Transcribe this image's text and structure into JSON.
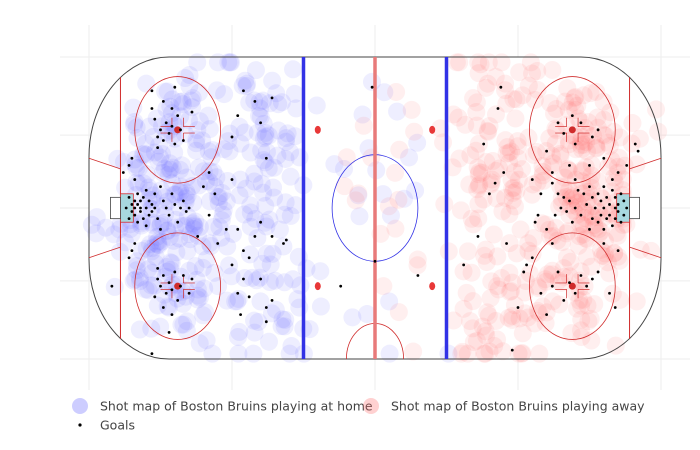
{
  "chart_data": {
    "type": "scatter",
    "title": "",
    "xlabel": "",
    "ylabel": "",
    "xlim": [
      -100,
      100
    ],
    "ylim": [
      -42.5,
      42.5
    ],
    "grid": true,
    "legend_position": "bottom",
    "background": "ice hockey rink",
    "series": [
      {
        "name": "Shot map of Boston Bruins playing  at home",
        "color": "#5b5bff",
        "opacity": 0.1,
        "marker": "large circle",
        "density_clusters": [
          {
            "x": -75,
            "y": 0,
            "count": 110,
            "spread_x": 10,
            "spread_y": 12
          },
          {
            "x": -69,
            "y": 22,
            "count": 45,
            "spread_x": 9,
            "spread_y": 8
          },
          {
            "x": -69,
            "y": -22,
            "count": 45,
            "spread_x": 9,
            "spread_y": 8
          },
          {
            "x": -55,
            "y": 0,
            "count": 70,
            "spread_x": 12,
            "spread_y": 20
          },
          {
            "x": -38,
            "y": 27,
            "count": 40,
            "spread_x": 8,
            "spread_y": 10
          },
          {
            "x": -38,
            "y": -27,
            "count": 40,
            "spread_x": 8,
            "spread_y": 10
          },
          {
            "x": -40,
            "y": 0,
            "count": 25,
            "spread_x": 8,
            "spread_y": 12
          },
          {
            "x": -5,
            "y": 0,
            "count": 22,
            "spread_x": 18,
            "spread_y": 22
          }
        ]
      },
      {
        "name": "Shot map of Boston Bruins playing  away",
        "color": "#ff6666",
        "opacity": 0.1,
        "marker": "large circle",
        "density_clusters": [
          {
            "x": 78,
            "y": 0,
            "count": 110,
            "spread_x": 8,
            "spread_y": 12
          },
          {
            "x": 69,
            "y": 22,
            "count": 45,
            "spread_x": 9,
            "spread_y": 8
          },
          {
            "x": 69,
            "y": -22,
            "count": 45,
            "spread_x": 9,
            "spread_y": 8
          },
          {
            "x": 55,
            "y": 0,
            "count": 70,
            "spread_x": 12,
            "spread_y": 20
          },
          {
            "x": 40,
            "y": 28,
            "count": 40,
            "spread_x": 8,
            "spread_y": 10
          },
          {
            "x": 40,
            "y": -28,
            "count": 40,
            "spread_x": 8,
            "spread_y": 10
          },
          {
            "x": 42,
            "y": 0,
            "count": 25,
            "spread_x": 8,
            "spread_y": 12
          },
          {
            "x": 10,
            "y": 0,
            "count": 22,
            "spread_x": 18,
            "spread_y": 22
          }
        ]
      },
      {
        "name": "Goals",
        "color": "#000000",
        "marker": "small dot",
        "points": [
          [
            -87,
            0
          ],
          [
            -86,
            3
          ],
          [
            -86,
            -3
          ],
          [
            -85,
            1
          ],
          [
            -85,
            -1
          ],
          [
            -84,
            0
          ],
          [
            -84,
            2
          ],
          [
            -84,
            -2
          ],
          [
            -83,
            4
          ],
          [
            -83,
            -4
          ],
          [
            -83,
            1
          ],
          [
            -82,
            0
          ],
          [
            -82,
            -1
          ],
          [
            -82,
            2
          ],
          [
            -81,
            3
          ],
          [
            -81,
            -3
          ],
          [
            -80,
            0
          ],
          [
            -80,
            5
          ],
          [
            -80,
            -5
          ],
          [
            -79,
            2
          ],
          [
            -79,
            -2
          ],
          [
            -78,
            1
          ],
          [
            -78,
            -1
          ],
          [
            -77,
            4
          ],
          [
            -77,
            0
          ],
          [
            -76,
            -3
          ],
          [
            -75,
            6
          ],
          [
            -75,
            -6
          ],
          [
            -74,
            2
          ],
          [
            -73,
            0
          ],
          [
            -72,
            -2
          ],
          [
            -71,
            4
          ],
          [
            -70,
            1
          ],
          [
            -69,
            -4
          ],
          [
            -68,
            0
          ],
          [
            -67,
            2
          ],
          [
            -66,
            -1
          ],
          [
            -65,
            0
          ],
          [
            -88,
            10
          ],
          [
            -86,
            12
          ],
          [
            -85,
            14
          ],
          [
            -84,
            8
          ],
          [
            -84,
            -10
          ],
          [
            -85,
            -12
          ],
          [
            -86,
            -14
          ],
          [
            -76,
            20
          ],
          [
            -75,
            22
          ],
          [
            -74,
            19
          ],
          [
            -73,
            24
          ],
          [
            -72,
            21
          ],
          [
            -71,
            23
          ],
          [
            -70,
            18
          ],
          [
            -77,
            25
          ],
          [
            -69,
            26
          ],
          [
            -68,
            22
          ],
          [
            -74,
            30
          ],
          [
            -71,
            28
          ],
          [
            -67,
            19
          ],
          [
            -76,
            17
          ],
          [
            -76,
            -20
          ],
          [
            -75,
            -22
          ],
          [
            -74,
            -19
          ],
          [
            -73,
            -24
          ],
          [
            -72,
            -21
          ],
          [
            -71,
            -23
          ],
          [
            -70,
            -18
          ],
          [
            -77,
            -25
          ],
          [
            -69,
            -26
          ],
          [
            -68,
            -22
          ],
          [
            -74,
            -28
          ],
          [
            -71,
            -30
          ],
          [
            -67,
            -19
          ],
          [
            -76,
            -17
          ],
          [
            -78,
            33
          ],
          [
            -78,
            28
          ],
          [
            -70,
            34
          ],
          [
            -64,
            27
          ],
          [
            -65,
            -24
          ],
          [
            -64,
            -20
          ],
          [
            -72,
            -35
          ],
          [
            -60,
            6
          ],
          [
            -58,
            -2
          ],
          [
            -56,
            4
          ],
          [
            -62,
            -8
          ],
          [
            -58,
            10
          ],
          [
            -55,
            -10
          ],
          [
            -50,
            8
          ],
          [
            -52,
            -6
          ],
          [
            -48,
            26
          ],
          [
            -46,
            33
          ],
          [
            -42,
            30
          ],
          [
            -40,
            24
          ],
          [
            -38,
            14
          ],
          [
            -36,
            31
          ],
          [
            -50,
            20
          ],
          [
            -48,
            -6
          ],
          [
            -46,
            -12
          ],
          [
            -44,
            -14
          ],
          [
            -42,
            -8
          ],
          [
            -40,
            -4
          ],
          [
            -40,
            -20
          ],
          [
            -36,
            -8
          ],
          [
            -38,
            -28
          ],
          [
            -38,
            -32
          ],
          [
            -32,
            -10
          ],
          [
            -31,
            -9
          ],
          [
            -36,
            -26
          ],
          [
            -50,
            -16
          ],
          [
            -48,
            -24
          ],
          [
            -92,
            -22
          ],
          [
            -46,
            -20
          ],
          [
            -47,
            -30
          ],
          [
            -44,
            -25
          ],
          [
            -1,
            34
          ],
          [
            0,
            -15
          ],
          [
            -12,
            -22
          ],
          [
            -78,
            -41
          ],
          [
            88,
            0
          ],
          [
            87,
            2
          ],
          [
            87,
            -2
          ],
          [
            86,
            4
          ],
          [
            86,
            -4
          ],
          [
            85,
            1
          ],
          [
            85,
            -1
          ],
          [
            84,
            0
          ],
          [
            84,
            3
          ],
          [
            84,
            -3
          ],
          [
            83,
            5
          ],
          [
            83,
            -5
          ],
          [
            82,
            1
          ],
          [
            82,
            -2
          ],
          [
            81,
            3
          ],
          [
            81,
            -3
          ],
          [
            80,
            0
          ],
          [
            80,
            6
          ],
          [
            80,
            -6
          ],
          [
            79,
            2
          ],
          [
            79,
            -2
          ],
          [
            78,
            4
          ],
          [
            78,
            -4
          ],
          [
            77,
            0
          ],
          [
            76,
            3
          ],
          [
            76,
            -3
          ],
          [
            75,
            6
          ],
          [
            75,
            -6
          ],
          [
            74,
            1
          ],
          [
            73,
            4
          ],
          [
            72,
            -2
          ],
          [
            71,
            5
          ],
          [
            70,
            0
          ],
          [
            69,
            -4
          ],
          [
            68,
            2
          ],
          [
            67,
            -1
          ],
          [
            66,
            3
          ],
          [
            65,
            0
          ],
          [
            64,
            4
          ],
          [
            63,
            -2
          ],
          [
            62,
            7
          ],
          [
            92,
            16
          ],
          [
            91,
            18
          ],
          [
            88,
            12
          ],
          [
            85,
            10
          ],
          [
            80,
            14
          ],
          [
            75,
            12
          ],
          [
            70,
            8
          ],
          [
            68,
            12
          ],
          [
            78,
            22
          ],
          [
            76,
            20
          ],
          [
            72,
            24
          ],
          [
            69,
            26
          ],
          [
            70,
            18
          ],
          [
            66,
            21
          ],
          [
            64,
            24
          ],
          [
            60,
            16
          ],
          [
            62,
            10
          ],
          [
            58,
            4
          ],
          [
            57,
            -2
          ],
          [
            56,
            -4
          ],
          [
            55,
            8
          ],
          [
            60,
            -6
          ],
          [
            62,
            -10
          ],
          [
            78,
            -18
          ],
          [
            76,
            -20
          ],
          [
            74,
            -22
          ],
          [
            72,
            -19
          ],
          [
            70,
            -24
          ],
          [
            68,
            -21
          ],
          [
            66,
            -26
          ],
          [
            64,
            -18
          ],
          [
            62,
            -22
          ],
          [
            60,
            -30
          ],
          [
            58,
            -24
          ],
          [
            55,
            -14
          ],
          [
            53,
            -16
          ],
          [
            82,
            -24
          ],
          [
            84,
            -28
          ],
          [
            83,
            8
          ],
          [
            80,
            -10
          ],
          [
            45,
            10
          ],
          [
            42,
            7
          ],
          [
            40,
            4
          ],
          [
            38,
            18
          ],
          [
            43,
            28
          ],
          [
            44,
            34
          ],
          [
            52,
            -18
          ],
          [
            50,
            -28
          ],
          [
            48,
            -40
          ],
          [
            46,
            -10
          ],
          [
            36,
            -8
          ],
          [
            31,
            -16
          ],
          [
            15,
            -19
          ],
          [
            85,
            -12
          ]
        ]
      }
    ]
  },
  "legend": {
    "home": "Shot map of Boston Bruins playing  at home",
    "away": "Shot map of Boston Bruins playing  away",
    "goals": "Goals"
  },
  "colors": {
    "home": "#5b5bff",
    "away": "#ff6666",
    "goals": "#000000",
    "blue_line": "#3232e6",
    "red_line": "#e87a7a",
    "rink_line": "#d02c2c",
    "crease": "#a8d8df",
    "grid": "#eeeeee"
  }
}
